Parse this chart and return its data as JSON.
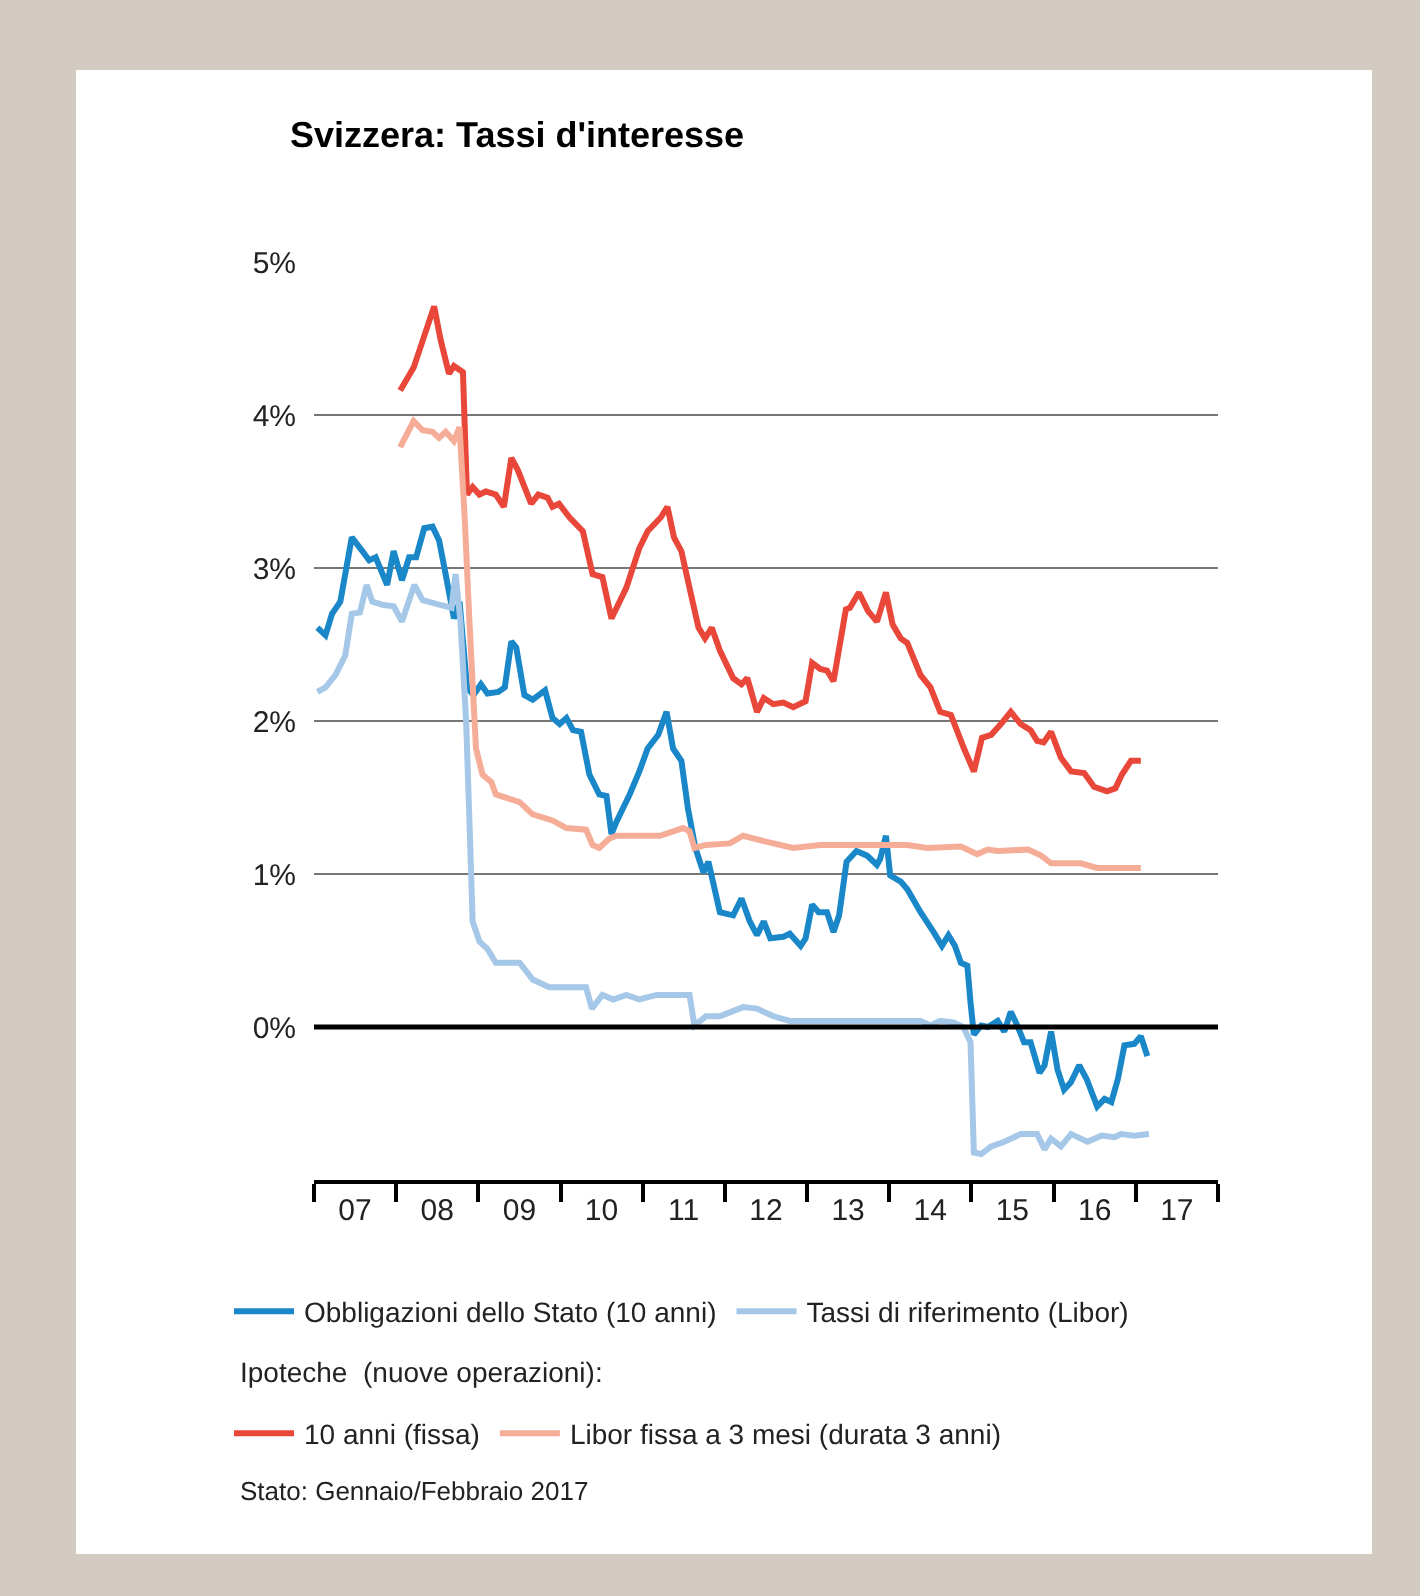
{
  "chart_data": {
    "type": "line",
    "title": "Svizzera: Tassi d'interesse",
    "xlim": [
      "2007-01-01",
      "2018-01-01"
    ],
    "xticks": [
      {
        "value": "2007-01-01",
        "label": null
      },
      {
        "value": "2008-01-01",
        "label": null
      },
      {
        "value": "2009-01-01",
        "label": null
      },
      {
        "value": "2010-01-01",
        "label": null
      },
      {
        "value": "2011-01-01",
        "label": null
      },
      {
        "value": "2012-01-01",
        "label": null
      },
      {
        "value": "2013-01-01",
        "label": null
      },
      {
        "value": "2014-01-01",
        "label": null
      },
      {
        "value": "2015-01-01",
        "label": null
      },
      {
        "value": "2016-01-01",
        "label": null
      },
      {
        "value": "2017-01-01",
        "label": null
      },
      {
        "value": "2018-01-01",
        "label": null
      },
      {
        "value": "2007-07-02",
        "label": "07"
      },
      {
        "value": "2008-07-02",
        "label": "08"
      },
      {
        "value": "2009-07-02",
        "label": "09"
      },
      {
        "value": "2010-07-02",
        "label": "10"
      },
      {
        "value": "2011-07-02",
        "label": "11"
      },
      {
        "value": "2012-07-02",
        "label": "12"
      },
      {
        "value": "2013-07-02",
        "label": "13"
      },
      {
        "value": "2014-07-02",
        "label": "14"
      },
      {
        "value": "2015-07-02",
        "label": "15"
      },
      {
        "value": "2016-07-02",
        "label": "16"
      },
      {
        "value": "2017-07-02",
        "label": "17"
      }
    ],
    "ylim": [
      -1,
      5
    ],
    "yticks": [
      {
        "value": 0,
        "label": "0%"
      },
      {
        "value": 1,
        "label": "1%"
      },
      {
        "value": 2,
        "label": "2%"
      },
      {
        "value": 3,
        "label": "3%"
      },
      {
        "value": 4,
        "label": "4%"
      },
      {
        "value": 5,
        "label": "5%"
      }
    ],
    "grid": "y",
    "legend": "bottom",
    "marker": "none",
    "line_style": "solid",
    "ref_lines": [
      {
        "axis": "y",
        "value": 0,
        "color": "#000000"
      }
    ],
    "annotations": [
      "Ipoteche  (nuove operazioni):",
      "Stato: Gennaio/Febbraio 2017"
    ],
    "series": [
      {
        "name": "Obbligazioni dello Stato (10 anni)",
        "color": "#1a87c9",
        "x": [
          "2007-01-16",
          "2007-02-21",
          "2007-03-22",
          "2007-04-28",
          "2007-06-18",
          "2007-08-04",
          "2007-09-03",
          "2007-10-02",
          "2007-11-22",
          "2007-12-21",
          "2008-01-27",
          "2008-02-28",
          "2008-03-30",
          "2008-05-05",
          "2008-06-11",
          "2008-07-10",
          "2008-08-08",
          "2008-09-14",
          "2008-10-09",
          "2008-11-11",
          "2008-12-10",
          "2009-01-12",
          "2009-02-10",
          "2009-03-30",
          "2009-04-28",
          "2009-05-27",
          "2009-06-18",
          "2009-07-24",
          "2009-08-30",
          "2009-10-24",
          "2009-11-26",
          "2009-12-28",
          "2010-01-27",
          "2010-02-25",
          "2010-04-02",
          "2010-05-09",
          "2010-06-22",
          "2010-07-24",
          "2010-08-15",
          "2010-09-06",
          "2010-11-04",
          "2010-12-17",
          "2011-01-23",
          "2011-03-11",
          "2011-04-17",
          "2011-05-16",
          "2011-06-22",
          "2011-07-21",
          "2011-08-23",
          "2011-09-28",
          "2011-10-20",
          "2011-12-10",
          "2012-02-07",
          "2012-03-15",
          "2012-04-21",
          "2012-05-23",
          "2012-06-22",
          "2012-07-21",
          "2012-09-17",
          "2012-10-16",
          "2012-12-03",
          "2012-12-25",
          "2013-01-23",
          "2013-02-21",
          "2013-03-30",
          "2013-04-28",
          "2013-05-23",
          "2013-06-25",
          "2013-08-08",
          "2013-09-24",
          "2013-11-07",
          "2013-11-22",
          "2013-12-17",
          "2014-01-05",
          "2014-02-21",
          "2014-03-22",
          "2014-05-20",
          "2014-07-17",
          "2014-08-23",
          "2014-09-21",
          "2014-10-20",
          "2014-11-15",
          "2014-12-14",
          "2014-12-28",
          "2015-01-12",
          "2015-02-14",
          "2015-03-15",
          "2015-04-28",
          "2015-05-27",
          "2015-06-25",
          "2015-07-24",
          "2015-08-23",
          "2015-09-21",
          "2015-10-31",
          "2015-11-22",
          "2015-12-21",
          "2016-01-19",
          "2016-02-17",
          "2016-03-19",
          "2016-04-24",
          "2016-05-27",
          "2016-07-13",
          "2016-08-15",
          "2016-09-14",
          "2016-10-13",
          "2016-11-11",
          "2016-12-25",
          "2017-01-23",
          "2017-02-21"
        ],
        "values": [
          2.61,
          2.56,
          2.7,
          2.78,
          3.2,
          3.11,
          3.05,
          3.07,
          2.89,
          3.11,
          2.92,
          3.07,
          3.07,
          3.26,
          3.27,
          3.18,
          2.96,
          2.67,
          2.78,
          2.22,
          2.17,
          2.24,
          2.18,
          2.19,
          2.22,
          2.52,
          2.48,
          2.17,
          2.14,
          2.2,
          2.02,
          1.98,
          2.02,
          1.94,
          1.93,
          1.65,
          1.52,
          1.51,
          1.26,
          1.34,
          1.52,
          1.67,
          1.82,
          1.91,
          2.06,
          1.82,
          1.74,
          1.43,
          1.17,
          1.01,
          1.08,
          0.75,
          0.73,
          0.84,
          0.69,
          0.6,
          0.69,
          0.58,
          0.59,
          0.61,
          0.53,
          0.58,
          0.8,
          0.75,
          0.75,
          0.62,
          0.73,
          1.08,
          1.15,
          1.12,
          1.06,
          1.1,
          1.25,
          0.99,
          0.95,
          0.9,
          0.75,
          0.62,
          0.53,
          0.6,
          0.53,
          0.42,
          0.4,
          0.16,
          -0.05,
          0.01,
          0.0,
          0.04,
          -0.03,
          0.1,
          0.01,
          -0.1,
          -0.1,
          -0.3,
          -0.25,
          -0.03,
          -0.28,
          -0.41,
          -0.36,
          -0.25,
          -0.34,
          -0.52,
          -0.47,
          -0.49,
          -0.34,
          -0.12,
          -0.11,
          -0.06,
          -0.19
        ]
      },
      {
        "name": "Tassi di riferimento (Libor)",
        "color": "#a6c8e8",
        "x": [
          "2007-01-16",
          "2007-02-21",
          "2007-04-06",
          "2007-05-20",
          "2007-06-18",
          "2007-07-24",
          "2007-08-23",
          "2007-09-17",
          "2007-10-31",
          "2007-12-21",
          "2008-01-27",
          "2008-03-22",
          "2008-04-28",
          "2008-07-10",
          "2008-09-03",
          "2008-09-21",
          "2008-10-13",
          "2008-11-07",
          "2008-11-22",
          "2008-12-06",
          "2009-01-05",
          "2009-02-10",
          "2009-03-19",
          "2009-07-03",
          "2009-08-30",
          "2009-11-11",
          "2010-04-24",
          "2010-05-20",
          "2010-07-06",
          "2010-08-23",
          "2010-10-20",
          "2010-12-17",
          "2011-03-04",
          "2011-07-28",
          "2011-08-19",
          "2011-10-09",
          "2011-12-10",
          "2012-03-22",
          "2012-05-23",
          "2012-08-04",
          "2012-10-16",
          "2014-05-20",
          "2014-07-03",
          "2014-08-15",
          "2014-10-13",
          "2014-11-26",
          "2014-12-28",
          "2015-01-12",
          "2015-02-14",
          "2015-03-30",
          "2015-05-27",
          "2015-08-08",
          "2015-10-20",
          "2015-11-22",
          "2015-12-21",
          "2016-02-03",
          "2016-03-19",
          "2016-05-31",
          "2016-08-01",
          "2016-09-28",
          "2016-10-27",
          "2016-12-25",
          "2017-02-28"
        ],
        "values": [
          2.19,
          2.22,
          2.3,
          2.43,
          2.7,
          2.71,
          2.89,
          2.78,
          2.76,
          2.75,
          2.65,
          2.89,
          2.79,
          2.76,
          2.74,
          2.96,
          2.65,
          2.0,
          1.34,
          0.69,
          0.56,
          0.51,
          0.42,
          0.42,
          0.31,
          0.26,
          0.26,
          0.12,
          0.21,
          0.18,
          0.21,
          0.18,
          0.21,
          0.21,
          0.01,
          0.07,
          0.07,
          0.13,
          0.12,
          0.07,
          0.04,
          0.04,
          0.01,
          0.04,
          0.03,
          0.0,
          -0.1,
          -0.82,
          -0.83,
          -0.78,
          -0.75,
          -0.7,
          -0.7,
          -0.8,
          -0.73,
          -0.78,
          -0.7,
          -0.75,
          -0.71,
          -0.72,
          -0.7,
          -0.71,
          -0.7
        ]
      },
      {
        "name": "10 anni (fissa)",
        "color": "#e8473a",
        "x": [
          "2008-01-19",
          "2008-03-19",
          "2008-06-18",
          "2008-07-17",
          "2008-08-23",
          "2008-09-14",
          "2008-10-24",
          "2008-11-11",
          "2008-12-06",
          "2009-01-05",
          "2009-02-03",
          "2009-03-19",
          "2009-04-24",
          "2009-05-27",
          "2009-06-25",
          "2009-08-23",
          "2009-09-24",
          "2009-11-04",
          "2009-11-26",
          "2009-12-25",
          "2010-02-10",
          "2010-04-10",
          "2010-05-23",
          "2010-07-06",
          "2010-08-15",
          "2010-10-20",
          "2010-12-17",
          "2011-01-23",
          "2011-03-22",
          "2011-04-21",
          "2011-05-20",
          "2011-06-22",
          "2011-07-28",
          "2011-09-06",
          "2011-10-05",
          "2011-11-04",
          "2011-12-10",
          "2012-02-07",
          "2012-03-15",
          "2012-04-10",
          "2012-05-23",
          "2012-06-22",
          "2012-08-04",
          "2012-09-17",
          "2012-10-31",
          "2012-12-25",
          "2013-01-23",
          "2013-02-28",
          "2013-03-30",
          "2013-04-28",
          "2013-06-22",
          "2013-07-10",
          "2013-08-19",
          "2013-09-28",
          "2013-11-07",
          "2013-12-17",
          "2014-01-16",
          "2014-02-21",
          "2014-03-22",
          "2014-05-20",
          "2014-07-03",
          "2014-08-15",
          "2014-10-02",
          "2014-11-29",
          "2015-01-12",
          "2015-02-17",
          "2015-03-30",
          "2015-05-12",
          "2015-06-25",
          "2015-08-08",
          "2015-09-21",
          "2015-10-20",
          "2015-11-18",
          "2015-12-21",
          "2016-02-03",
          "2016-03-19",
          "2016-05-16",
          "2016-06-29",
          "2016-08-26",
          "2016-10-02",
          "2016-10-31",
          "2016-12-10",
          "2017-01-23"
        ],
        "values": [
          4.16,
          4.31,
          4.71,
          4.49,
          4.27,
          4.32,
          4.28,
          3.48,
          3.53,
          3.48,
          3.5,
          3.48,
          3.4,
          3.72,
          3.64,
          3.42,
          3.48,
          3.46,
          3.4,
          3.42,
          3.33,
          3.24,
          2.96,
          2.94,
          2.67,
          2.87,
          3.13,
          3.24,
          3.33,
          3.4,
          3.2,
          3.11,
          2.87,
          2.61,
          2.54,
          2.61,
          2.46,
          2.28,
          2.24,
          2.28,
          2.06,
          2.15,
          2.11,
          2.12,
          2.09,
          2.13,
          2.38,
          2.34,
          2.33,
          2.26,
          2.73,
          2.74,
          2.84,
          2.72,
          2.65,
          2.84,
          2.63,
          2.54,
          2.51,
          2.3,
          2.22,
          2.06,
          2.04,
          1.82,
          1.67,
          1.89,
          1.91,
          1.98,
          2.06,
          1.98,
          1.94,
          1.87,
          1.86,
          1.93,
          1.76,
          1.67,
          1.66,
          1.57,
          1.54,
          1.56,
          1.65,
          1.74,
          1.74
        ]
      },
      {
        "name": "Libor fissa a 3 mesi (durata 3 anni)",
        "color": "#f5ad98",
        "x": [
          "2008-01-19",
          "2008-03-19",
          "2008-04-28",
          "2008-06-11",
          "2008-07-10",
          "2008-08-08",
          "2008-09-14",
          "2008-10-09",
          "2008-10-31",
          "2008-11-22",
          "2008-12-21",
          "2009-01-19",
          "2009-02-28",
          "2009-03-19",
          "2009-07-03",
          "2009-08-30",
          "2009-11-26",
          "2010-01-27",
          "2010-04-24",
          "2010-05-23",
          "2010-06-22",
          "2010-08-04",
          "2010-09-06",
          "2011-03-19",
          "2011-06-29",
          "2011-07-28",
          "2011-08-19",
          "2011-10-09",
          "2012-01-23",
          "2012-03-22",
          "2012-07-06",
          "2012-10-31",
          "2013-02-28",
          "2014-03-22",
          "2014-06-18",
          "2014-11-15",
          "2015-01-27",
          "2015-03-15",
          "2015-04-28",
          "2015-09-10",
          "2015-11-07",
          "2015-12-21",
          "2016-05-01",
          "2016-07-13",
          "2017-01-23"
        ],
        "values": [
          3.79,
          3.96,
          3.9,
          3.89,
          3.85,
          3.89,
          3.83,
          3.92,
          3.35,
          2.65,
          1.82,
          1.65,
          1.6,
          1.52,
          1.47,
          1.39,
          1.35,
          1.3,
          1.29,
          1.19,
          1.17,
          1.23,
          1.25,
          1.25,
          1.3,
          1.28,
          1.17,
          1.19,
          1.2,
          1.25,
          1.21,
          1.17,
          1.19,
          1.19,
          1.17,
          1.18,
          1.13,
          1.16,
          1.15,
          1.16,
          1.12,
          1.07,
          1.07,
          1.04,
          1.04
        ]
      }
    ]
  }
}
